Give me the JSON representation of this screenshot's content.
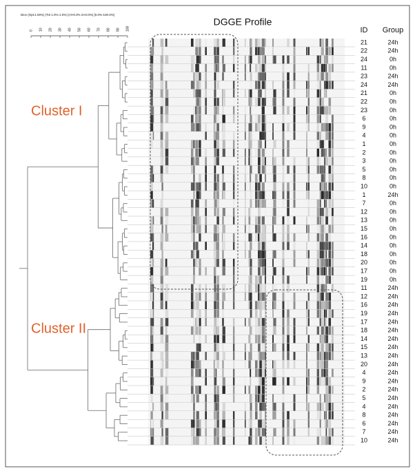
{
  "header": {
    "scale_caption": "Dice (Opt:1.00%) (Tol 1.0%-1.0%) (H>0.0% S>0.0%) [0.0%-100.0%]",
    "scale_ticks": [
      0,
      10,
      20,
      30,
      40,
      50,
      60,
      70,
      80,
      90,
      100
    ],
    "title": "DGGE Profile",
    "id_heading": "ID",
    "group_heading": "Group"
  },
  "clusters": [
    "Cluster I",
    "Cluster II"
  ],
  "rows": [
    [
      "21",
      "24h"
    ],
    [
      "22",
      "24h"
    ],
    [
      "24",
      "0h"
    ],
    [
      "11",
      "0h"
    ],
    [
      "23",
      "24h"
    ],
    [
      "24",
      "24h"
    ],
    [
      "21",
      "0h"
    ],
    [
      "22",
      "0h"
    ],
    [
      "23",
      "0h"
    ],
    [
      "6",
      "0h"
    ],
    [
      "9",
      "0h"
    ],
    [
      "4",
      "0h"
    ],
    [
      "1",
      "0h"
    ],
    [
      "2",
      "0h"
    ],
    [
      "3",
      "0h"
    ],
    [
      "5",
      "0h"
    ],
    [
      "8",
      "0h"
    ],
    [
      "10",
      "0h"
    ],
    [
      "1",
      "24h"
    ],
    [
      "7",
      "0h"
    ],
    [
      "12",
      "0h"
    ],
    [
      "13",
      "0h"
    ],
    [
      "15",
      "0h"
    ],
    [
      "16",
      "0h"
    ],
    [
      "14",
      "0h"
    ],
    [
      "18",
      "0h"
    ],
    [
      "20",
      "0h"
    ],
    [
      "17",
      "0h"
    ],
    [
      "19",
      "0h"
    ],
    [
      "11",
      "24h"
    ],
    [
      "12",
      "24h"
    ],
    [
      "16",
      "24h"
    ],
    [
      "19",
      "24h"
    ],
    [
      "17",
      "24h"
    ],
    [
      "18",
      "24h"
    ],
    [
      "14",
      "24h"
    ],
    [
      "15",
      "24h"
    ],
    [
      "13",
      "24h"
    ],
    [
      "20",
      "24h"
    ],
    [
      "4",
      "24h"
    ],
    [
      "9",
      "24h"
    ],
    [
      "2",
      "24h"
    ],
    [
      "5",
      "24h"
    ],
    [
      "4",
      "24h"
    ],
    [
      "8",
      "24h"
    ],
    [
      "6",
      "24h"
    ],
    [
      "7",
      "24h"
    ],
    [
      "10",
      "24h"
    ]
  ]
}
